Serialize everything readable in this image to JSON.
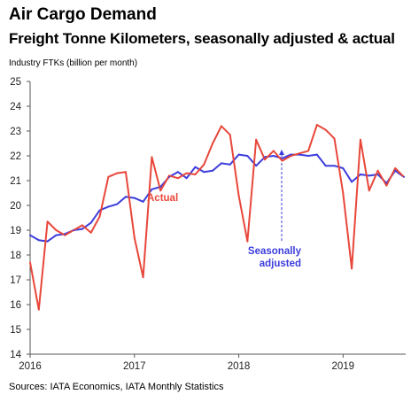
{
  "title": "Air Cargo Demand",
  "subtitle": "Freight Tonne Kilometers, seasonally adjusted & actual",
  "source": "Sources: IATA Economics, IATA Monthly Statistics",
  "colors": {
    "actual": "#e8473a",
    "seasonally_adjusted": "#3d3ddd",
    "axis": "#555555"
  },
  "chart_data": {
    "type": "line",
    "title": "Air Cargo Demand",
    "subtitle": "Freight Tonne Kilometers, seasonally adjusted & actual",
    "ylabel": "Industry FTKs (billion per month)",
    "xlabel": "",
    "ylim": [
      14,
      25
    ],
    "yticks": [
      "14",
      "15",
      "16",
      "17",
      "18",
      "19",
      "20",
      "21",
      "22",
      "23",
      "24",
      "25"
    ],
    "xticks": [
      "2016",
      "2017",
      "2018",
      "2019"
    ],
    "x": [
      "2016-01",
      "2016-02",
      "2016-03",
      "2016-04",
      "2016-05",
      "2016-06",
      "2016-07",
      "2016-08",
      "2016-09",
      "2016-10",
      "2016-11",
      "2016-12",
      "2017-01",
      "2017-02",
      "2017-03",
      "2017-04",
      "2017-05",
      "2017-06",
      "2017-07",
      "2017-08",
      "2017-09",
      "2017-10",
      "2017-11",
      "2017-12",
      "2018-01",
      "2018-02",
      "2018-03",
      "2018-04",
      "2018-05",
      "2018-06",
      "2018-07",
      "2018-08",
      "2018-09",
      "2018-10",
      "2018-11",
      "2018-12",
      "2019-01",
      "2019-02",
      "2019-03",
      "2019-04",
      "2019-05",
      "2019-06",
      "2019-07",
      "2019-08"
    ],
    "grid": false,
    "series": [
      {
        "name": "Actual",
        "values": [
          17.7,
          15.8,
          19.35,
          19.0,
          18.8,
          19.0,
          19.2,
          18.9,
          19.55,
          21.15,
          21.3,
          21.35,
          18.7,
          17.1,
          21.95,
          20.6,
          21.2,
          21.1,
          21.3,
          21.25,
          21.65,
          22.5,
          23.2,
          22.85,
          20.4,
          18.55,
          22.65,
          21.85,
          22.2,
          21.8,
          22.0,
          22.1,
          22.2,
          23.25,
          23.05,
          22.7,
          20.5,
          17.45,
          22.65,
          20.6,
          21.4,
          20.8,
          21.5,
          21.15
        ]
      },
      {
        "name": "Seasonally adjusted",
        "values": [
          18.8,
          18.6,
          18.55,
          18.8,
          18.85,
          19.0,
          19.05,
          19.3,
          19.8,
          19.95,
          20.05,
          20.35,
          20.3,
          20.15,
          20.65,
          20.75,
          21.15,
          21.35,
          21.1,
          21.55,
          21.35,
          21.4,
          21.7,
          21.65,
          22.05,
          22.0,
          21.6,
          21.95,
          22.0,
          21.9,
          22.05,
          22.05,
          22.0,
          22.05,
          21.6,
          21.6,
          21.5,
          20.95,
          21.25,
          21.2,
          21.25,
          20.9,
          21.4,
          21.15
        ]
      }
    ],
    "annotations": [
      {
        "text": "Actual",
        "series": "Actual"
      },
      {
        "text": "Seasonally",
        "series": "Seasonally adjusted"
      },
      {
        "text": "adjusted",
        "series": "Seasonally adjusted"
      }
    ]
  }
}
